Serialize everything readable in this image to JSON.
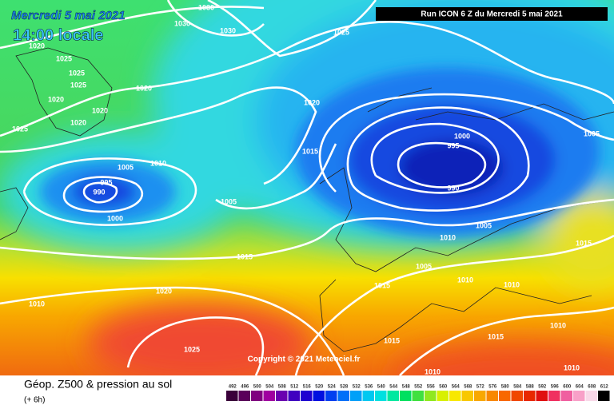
{
  "header": {
    "date": "Mercredi 5 mai 2021",
    "time": "14:00 locale",
    "run": "Run ICON 6 Z du Mercredi 5 mai 2021"
  },
  "copyright": "Copyright © 2021 Meteociel.fr",
  "footer": {
    "title": "Géop. Z500 & pression au sol",
    "lead": "(+ 6h)"
  },
  "isobars": {
    "labels": [
      1030,
      1030,
      1030,
      1025,
      1020,
      1025,
      1025,
      1025,
      1020,
      1020,
      1020,
      1020,
      1025,
      1020,
      1015,
      1010,
      1005,
      995,
      990,
      1000,
      1005,
      1000,
      995,
      990,
      1005,
      1010,
      1005,
      1015,
      1015,
      1005,
      1010,
      1015,
      1010,
      1020,
      1010,
      1025,
      1015,
      1015,
      1010,
      1010,
      1010
    ]
  },
  "scale": {
    "labels": [
      492,
      496,
      500,
      504,
      508,
      512,
      516,
      520,
      524,
      528,
      532,
      536,
      540,
      544,
      548,
      552,
      556,
      560,
      564,
      568,
      572,
      576,
      580,
      584,
      588,
      592,
      596,
      600,
      604,
      608,
      612
    ]
  }
}
